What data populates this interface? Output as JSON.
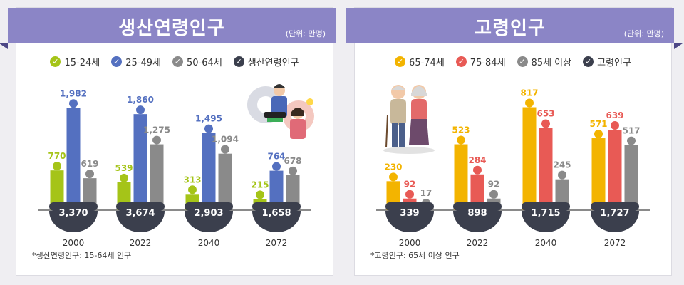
{
  "panels": [
    {
      "title": "생산연령인구",
      "unit": "(단위: 만명)",
      "footnote": "*생산연령인구: 15-64세 인구",
      "legend": [
        {
          "label": "15-24세",
          "color": "#a5c418"
        },
        {
          "label": "25-49세",
          "color": "#5470c0"
        },
        {
          "label": "50-64세",
          "color": "#8a8a8a"
        },
        {
          "label": "생산연령인구",
          "color": "#3b3f4d"
        }
      ]
    },
    {
      "title": "고령인구",
      "unit": "(단위: 만명)",
      "footnote": "*고령인구: 65세 이상 인구",
      "legend": [
        {
          "label": "65-74세",
          "color": "#f3b400"
        },
        {
          "label": "75-84세",
          "color": "#e85a55"
        },
        {
          "label": "85세 이상",
          "color": "#8a8a8a"
        },
        {
          "label": "고령인구",
          "color": "#3b3f4d"
        }
      ]
    }
  ],
  "chart_data": [
    {
      "type": "bar",
      "title": "생산연령인구",
      "categories": [
        "2000",
        "2022",
        "2040",
        "2072"
      ],
      "series": [
        {
          "name": "15-24세",
          "values": [
            770,
            539,
            313,
            215
          ],
          "labels": [
            "770",
            "539",
            "313",
            "215"
          ],
          "color": "#a5c418"
        },
        {
          "name": "25-49세",
          "values": [
            1982,
            1860,
            1495,
            764
          ],
          "labels": [
            "1,982",
            "1,860",
            "1,495",
            "764"
          ],
          "color": "#5470c0"
        },
        {
          "name": "50-64세",
          "values": [
            619,
            1275,
            1094,
            678
          ],
          "labels": [
            "619",
            "1,275",
            "1,094",
            "678"
          ],
          "color": "#8a8a8a"
        }
      ],
      "totals": {
        "name": "생산연령인구",
        "values": [
          3370,
          3674,
          2903,
          1658
        ],
        "labels": [
          "3,370",
          "3,674",
          "2,903",
          "1,658"
        ]
      },
      "ymax": 2000
    },
    {
      "type": "bar",
      "title": "고령인구",
      "categories": [
        "2000",
        "2022",
        "2040",
        "2072"
      ],
      "series": [
        {
          "name": "65-74세",
          "values": [
            230,
            523,
            817,
            571
          ],
          "labels": [
            "230",
            "523",
            "817",
            "571"
          ],
          "color": "#f3b400"
        },
        {
          "name": "75-84세",
          "values": [
            92,
            284,
            653,
            639
          ],
          "labels": [
            "92",
            "284",
            "653",
            "639"
          ],
          "color": "#e85a55"
        },
        {
          "name": "85세 이상",
          "values": [
            17,
            92,
            245,
            517
          ],
          "labels": [
            "17",
            "92",
            "245",
            "517"
          ],
          "color": "#8a8a8a"
        }
      ],
      "totals": {
        "name": "고령인구",
        "values": [
          339,
          898,
          1715,
          1727
        ],
        "labels": [
          "339",
          "898",
          "1,715",
          "1,727"
        ]
      },
      "ymax": 820
    }
  ]
}
